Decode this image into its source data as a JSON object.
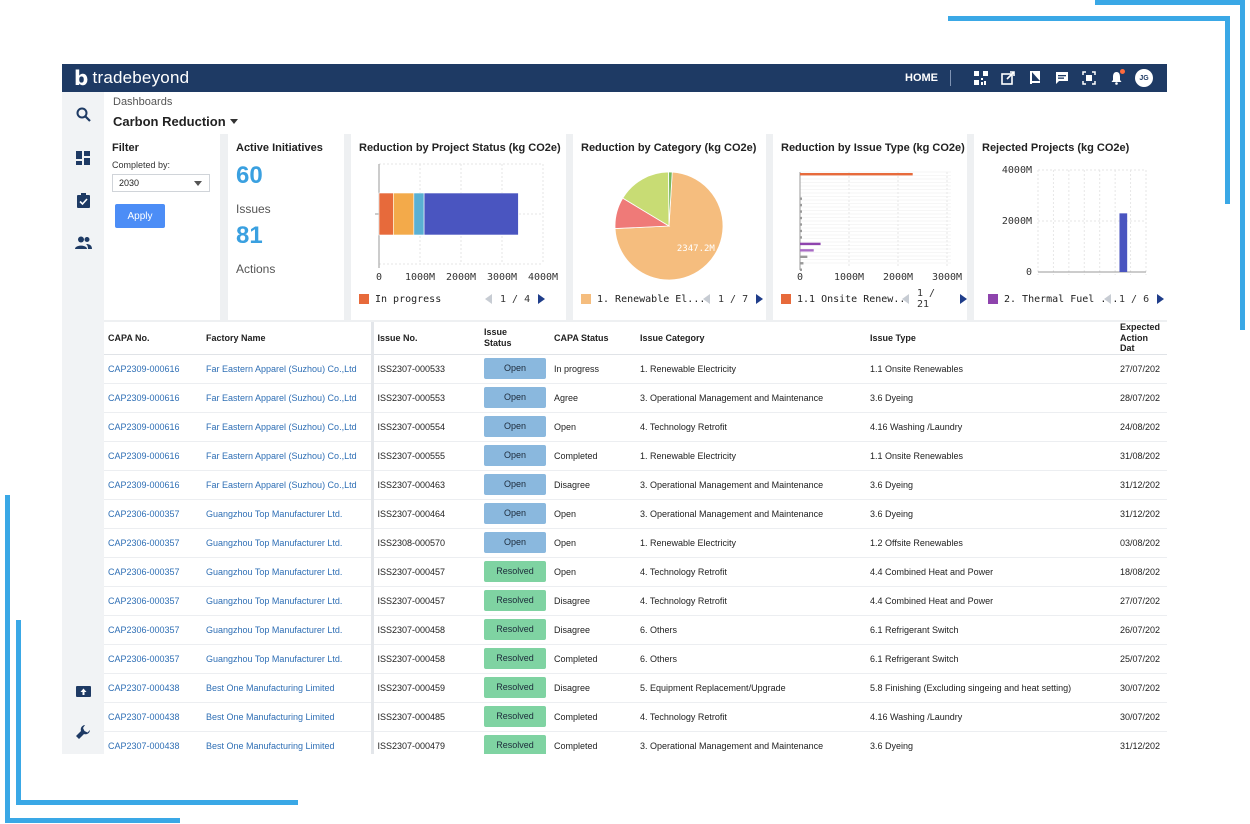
{
  "app": {
    "brand": "tradebeyond",
    "brand_mark": "b",
    "nav_home": "HOME",
    "user_initials": "JG"
  },
  "icons": {
    "top": [
      "qr-code-icon",
      "external-link-icon",
      "book-icon",
      "chat-icon",
      "scan-icon",
      "bell-icon"
    ],
    "side": [
      "search-icon",
      "dashboard-icon",
      "clipboard-check-icon",
      "users-icon",
      "upload-icon",
      "wrench-icon"
    ]
  },
  "colors": {
    "header_bg": "#1e3a64",
    "accent_number": "#3aa0e0",
    "apply_button": "#4c8df6",
    "status_open": "#8ab8de",
    "status_resolved": "#7fd3a2",
    "link": "#2f6fb5",
    "frame_lines": "#3aa8e6"
  },
  "header": {
    "breadcrumb": "Dashboards",
    "title": "Carbon Reduction"
  },
  "filter": {
    "title": "Filter",
    "completed_label": "Completed by:",
    "completed_value": "2030",
    "apply_label": "Apply"
  },
  "kpis": {
    "title": "Active Initiatives",
    "issues_value": "60",
    "issues_label": "Issues",
    "actions_value": "81",
    "actions_label": "Actions"
  },
  "chart_data": [
    {
      "type": "bar",
      "orientation": "horizontal",
      "stacked": true,
      "title": "Reduction by Project Status (kg CO2e)",
      "x_ticks": [
        "0",
        "1000M",
        "2000M",
        "3000M",
        "4000M"
      ],
      "xlim": [
        0,
        4000
      ],
      "grid": true,
      "segments": [
        {
          "color": "#e76a3b",
          "value": 350
        },
        {
          "color": "#f3aa4a",
          "value": 500
        },
        {
          "color": "#5ab0d3",
          "value": 250
        },
        {
          "color": "#4a55c0",
          "value": 2300
        }
      ],
      "legend": {
        "label": "In progress",
        "color": "#e76a3b"
      },
      "pager": {
        "current": "1",
        "total": "4",
        "text": "1 / 4"
      }
    },
    {
      "type": "pie",
      "title": "Reduction by Category (kg CO2e)",
      "slices": [
        {
          "value": 2347.2,
          "color": "#f5bd7e",
          "label": "2347.2M"
        },
        {
          "value": 300,
          "color": "#ef7a78"
        },
        {
          "value": 520,
          "color": "#c8dc74"
        },
        {
          "value": 35,
          "color": "#78b85c"
        }
      ],
      "legend": {
        "label": "1. Renewable El...",
        "color": "#f5bd7e"
      },
      "pager": {
        "current": "1",
        "total": "7",
        "text": "1 / 7"
      }
    },
    {
      "type": "bar",
      "orientation": "horizontal",
      "title": "Reduction by Issue Type (kg CO2e)",
      "x_ticks": [
        "0",
        "1000M",
        "2000M",
        "3000M"
      ],
      "xlim": [
        0,
        3000
      ],
      "grid": true,
      "bars": [
        {
          "value": 2300,
          "color": "#e76a3b"
        },
        {
          "value": 25,
          "color": "#999999"
        },
        {
          "value": 25,
          "color": "#999999"
        },
        {
          "value": 25,
          "color": "#999999"
        },
        {
          "value": 30,
          "color": "#999999"
        },
        {
          "value": 25,
          "color": "#999999"
        },
        {
          "value": 25,
          "color": "#999999"
        },
        {
          "value": 40,
          "color": "#999999"
        },
        {
          "value": 420,
          "color": "#8e44ad"
        },
        {
          "value": 280,
          "color": "#a86bc4"
        },
        {
          "value": 150,
          "color": "#999999"
        },
        {
          "value": 70,
          "color": "#999999"
        },
        {
          "value": 40,
          "color": "#999999"
        }
      ],
      "legend": {
        "label": "1.1 Onsite Renew...",
        "color": "#e76a3b"
      },
      "pager": {
        "current": "1",
        "total": "21",
        "text": "1 / 21"
      }
    },
    {
      "type": "bar",
      "orientation": "vertical",
      "title": "Rejected Projects (kg CO2e)",
      "y_ticks": [
        "0",
        "2000M",
        "4000M"
      ],
      "ylim": [
        0,
        4000
      ],
      "grid": true,
      "bars": [
        {
          "category_index": 5,
          "value": 2300,
          "color": "#4a55c0"
        }
      ],
      "category_count": 7,
      "legend": {
        "label": "2. Thermal Fuel ...",
        "color": "#8e44ad"
      },
      "pager": {
        "current": "1",
        "total": "6",
        "text": "1 / 6"
      }
    }
  ],
  "table": {
    "headers": {
      "capa_no": "CAPA No.",
      "factory": "Factory Name",
      "issue_no": "Issue No.",
      "issue_status_1": "Issue",
      "issue_status_2": "Status",
      "capa_status": "CAPA Status",
      "category": "Issue Category",
      "issue_type": "Issue Type",
      "expected_1": "Expected",
      "expected_2": "Action Dat"
    },
    "rows": [
      {
        "capa": "CAP2309-000616",
        "factory": "Far Eastern Apparel (Suzhou) Co.,Ltd",
        "issue": "ISS2307-000533",
        "status": "Open",
        "capa_status": "In progress",
        "category": "1. Renewable Electricity",
        "type": "1.1 Onsite Renewables",
        "date": "27/07/202"
      },
      {
        "capa": "CAP2309-000616",
        "factory": "Far Eastern Apparel (Suzhou) Co.,Ltd",
        "issue": "ISS2307-000553",
        "status": "Open",
        "capa_status": "Agree",
        "category": "3. Operational Management and Maintenance",
        "type": "3.6 Dyeing",
        "date": "28/07/202"
      },
      {
        "capa": "CAP2309-000616",
        "factory": "Far Eastern Apparel (Suzhou) Co.,Ltd",
        "issue": "ISS2307-000554",
        "status": "Open",
        "capa_status": "Open",
        "category": "4. Technology Retrofit",
        "type": "4.16 Washing /Laundry",
        "date": "24/08/202"
      },
      {
        "capa": "CAP2309-000616",
        "factory": "Far Eastern Apparel (Suzhou) Co.,Ltd",
        "issue": "ISS2307-000555",
        "status": "Open",
        "capa_status": "Completed",
        "category": "1. Renewable Electricity",
        "type": "1.1 Onsite Renewables",
        "date": "31/08/202"
      },
      {
        "capa": "CAP2309-000616",
        "factory": "Far Eastern Apparel (Suzhou) Co.,Ltd",
        "issue": "ISS2307-000463",
        "status": "Open",
        "capa_status": "Disagree",
        "category": "3. Operational Management and Maintenance",
        "type": "3.6 Dyeing",
        "date": "31/12/202"
      },
      {
        "capa": "CAP2306-000357",
        "factory": "Guangzhou Top Manufacturer Ltd.",
        "issue": "ISS2307-000464",
        "status": "Open",
        "capa_status": "Open",
        "category": "3. Operational Management and Maintenance",
        "type": "3.6 Dyeing",
        "date": "31/12/202"
      },
      {
        "capa": "CAP2306-000357",
        "factory": "Guangzhou Top Manufacturer Ltd.",
        "issue": "ISS2308-000570",
        "status": "Open",
        "capa_status": "Open",
        "category": "1. Renewable Electricity",
        "type": "1.2 Offsite Renewables",
        "date": "03/08/202"
      },
      {
        "capa": "CAP2306-000357",
        "factory": "Guangzhou Top Manufacturer Ltd.",
        "issue": "ISS2307-000457",
        "status": "Resolved",
        "capa_status": "Open",
        "category": "4. Technology Retrofit",
        "type": "4.4 Combined Heat and Power",
        "date": "18/08/202"
      },
      {
        "capa": "CAP2306-000357",
        "factory": "Guangzhou Top Manufacturer Ltd.",
        "issue": "ISS2307-000457",
        "status": "Resolved",
        "capa_status": "Disagree",
        "category": "4. Technology Retrofit",
        "type": "4.4 Combined Heat and Power",
        "date": "27/07/202"
      },
      {
        "capa": "CAP2306-000357",
        "factory": "Guangzhou Top Manufacturer Ltd.",
        "issue": "ISS2307-000458",
        "status": "Resolved",
        "capa_status": "Disagree",
        "category": "6. Others",
        "type": "6.1 Refrigerant Switch",
        "date": "26/07/202"
      },
      {
        "capa": "CAP2306-000357",
        "factory": "Guangzhou Top Manufacturer Ltd.",
        "issue": "ISS2307-000458",
        "status": "Resolved",
        "capa_status": "Completed",
        "category": "6. Others",
        "type": "6.1 Refrigerant Switch",
        "date": "25/07/202"
      },
      {
        "capa": "CAP2307-000438",
        "factory": "Best One Manufacturing Limited",
        "issue": "ISS2307-000459",
        "status": "Resolved",
        "capa_status": "Disagree",
        "category": "5. Equipment Replacement/Upgrade",
        "type": "5.8 Finishing (Excluding singeing and heat setting)",
        "date": "30/07/202"
      },
      {
        "capa": "CAP2307-000438",
        "factory": "Best One Manufacturing Limited",
        "issue": "ISS2307-000485",
        "status": "Resolved",
        "capa_status": "Completed",
        "category": "4. Technology Retrofit",
        "type": "4.16 Washing /Laundry",
        "date": "30/07/202"
      },
      {
        "capa": "CAP2307-000438",
        "factory": "Best One Manufacturing Limited",
        "issue": "ISS2307-000479",
        "status": "Resolved",
        "capa_status": "Completed",
        "category": "3. Operational Management and Maintenance",
        "type": "3.6 Dyeing",
        "date": "31/12/202"
      }
    ]
  }
}
